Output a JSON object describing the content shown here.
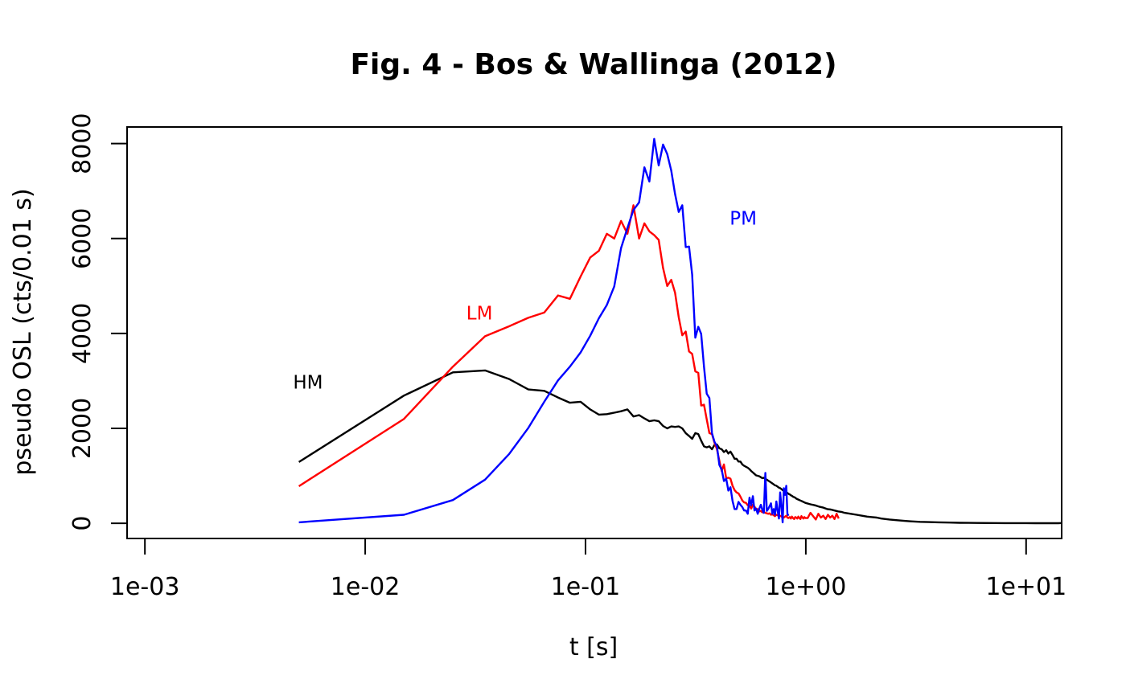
{
  "chart_data": {
    "type": "line",
    "title": "Fig. 4 - Bos & Wallinga (2012)",
    "xlabel": "t [s]",
    "ylabel": "pseudo OSL (cts/0.01 s)",
    "x_scale": "log",
    "xlim": [
      0.00083,
      14.5
    ],
    "ylim": [
      -320,
      8350
    ],
    "xticks": [
      0.001,
      0.01,
      0.1,
      1,
      10
    ],
    "xtick_labels": [
      "1e-03",
      "1e-02",
      "1e-01",
      "1e+00",
      "1e+01"
    ],
    "yticks": [
      0,
      2000,
      4000,
      6000,
      8000
    ],
    "ytick_labels": [
      "0",
      "2000",
      "4000",
      "6000",
      "8000"
    ],
    "grid": false,
    "legend": "none",
    "series": [
      {
        "color": "#000000",
        "x": [
          0.005,
          0.015,
          0.025,
          0.035,
          0.045,
          0.055,
          0.065,
          0.075,
          0.085,
          0.095,
          0.105,
          0.115,
          0.125,
          0.135,
          0.145,
          0.155,
          0.165,
          0.175,
          0.185,
          0.195,
          0.205,
          0.215,
          0.225,
          0.235,
          0.245,
          0.255,
          0.265,
          0.275,
          0.285,
          0.295,
          0.305,
          0.315,
          0.325,
          0.335,
          0.345,
          0.355,
          0.365,
          0.375,
          0.385,
          0.395,
          0.405,
          0.415,
          0.425,
          0.435,
          0.445,
          0.455,
          0.465,
          0.475,
          0.485,
          0.495,
          0.505,
          0.515,
          0.525,
          0.535,
          0.545,
          0.555,
          0.565,
          0.575,
          0.585,
          0.595,
          0.605,
          0.615,
          0.625,
          0.635,
          0.645,
          0.655,
          0.665,
          0.675,
          0.685,
          0.695,
          0.705,
          0.715,
          0.725,
          0.735,
          0.745,
          0.755,
          0.765,
          0.775,
          0.785,
          0.795,
          0.805,
          0.815,
          0.825,
          0.835,
          0.845,
          0.855,
          0.865,
          0.875,
          0.885,
          0.895,
          0.905,
          0.915,
          0.925,
          0.935,
          0.945,
          0.955,
          0.965,
          0.975,
          0.985,
          0.995,
          1.05,
          1.1,
          1.15,
          1.2,
          1.25,
          1.3,
          1.35,
          1.4,
          1.45,
          1.5,
          1.6,
          1.7,
          1.8,
          1.9,
          2.0,
          2.1,
          2.2,
          2.4,
          2.6,
          2.8,
          3.0,
          3.3,
          3.6,
          4.0,
          4.5,
          5.0,
          5.5,
          6.0,
          7.0,
          8.0,
          9.0,
          10.0,
          11.0,
          12.0,
          13.0,
          14.0,
          14.5
        ],
        "y": [
          1290,
          2690,
          3180,
          3220,
          3040,
          2820,
          2790,
          2650,
          2540,
          2560,
          2400,
          2290,
          2300,
          2330,
          2360,
          2400,
          2250,
          2280,
          2210,
          2150,
          2170,
          2150,
          2050,
          2000,
          2040,
          2030,
          2040,
          2000,
          1900,
          1840,
          1780,
          1900,
          1880,
          1740,
          1620,
          1600,
          1620,
          1560,
          1650,
          1660,
          1580,
          1560,
          1500,
          1540,
          1470,
          1510,
          1440,
          1360,
          1360,
          1300,
          1300,
          1240,
          1210,
          1190,
          1170,
          1140,
          1100,
          1070,
          1040,
          1010,
          1000,
          990,
          970,
          950,
          960,
          930,
          920,
          900,
          880,
          860,
          840,
          820,
          800,
          790,
          770,
          750,
          740,
          720,
          700,
          680,
          670,
          650,
          640,
          620,
          610,
          590,
          580,
          560,
          550,
          540,
          520,
          510,
          500,
          490,
          480,
          470,
          460,
          450,
          440,
          430,
          400,
          380,
          350,
          330,
          300,
          290,
          270,
          250,
          240,
          220,
          200,
          180,
          160,
          140,
          130,
          120,
          100,
          80,
          65,
          50,
          40,
          30,
          25,
          20,
          15,
          10,
          8,
          6,
          5,
          4,
          3,
          3,
          2,
          2,
          2,
          2,
          5
        ]
      },
      {
        "color": "#ff0000",
        "x": [
          0.005,
          0.015,
          0.025,
          0.035,
          0.045,
          0.055,
          0.065,
          0.075,
          0.085,
          0.095,
          0.105,
          0.115,
          0.125,
          0.135,
          0.145,
          0.155,
          0.165,
          0.175,
          0.185,
          0.195,
          0.205,
          0.215,
          0.225,
          0.235,
          0.245,
          0.255,
          0.265,
          0.275,
          0.285,
          0.295,
          0.305,
          0.315,
          0.325,
          0.335,
          0.345,
          0.355,
          0.365,
          0.375,
          0.385,
          0.395,
          0.405,
          0.415,
          0.425,
          0.435,
          0.445,
          0.455,
          0.465,
          0.475,
          0.485,
          0.495,
          0.505,
          0.515,
          0.525,
          0.535,
          0.545,
          0.555,
          0.565,
          0.575,
          0.585,
          0.595,
          0.605,
          0.615,
          0.625,
          0.635,
          0.645,
          0.655,
          0.665,
          0.675,
          0.685,
          0.695,
          0.705,
          0.715,
          0.725,
          0.735,
          0.745,
          0.755,
          0.765,
          0.775,
          0.785,
          0.795,
          0.805,
          0.815,
          0.825,
          0.835,
          0.845,
          0.855,
          0.865,
          0.875,
          0.885,
          0.895,
          0.905,
          0.915,
          0.925,
          0.935,
          0.945,
          0.955,
          0.965,
          0.975,
          0.985,
          0.995,
          1.02,
          1.05,
          1.08,
          1.11,
          1.14,
          1.17,
          1.2,
          1.23,
          1.26,
          1.29,
          1.32,
          1.35,
          1.38,
          1.41
        ],
        "y": [
          780,
          2200,
          3300,
          3940,
          4150,
          4330,
          4440,
          4800,
          4730,
          5200,
          5600,
          5740,
          6100,
          6000,
          6370,
          6100,
          6700,
          6000,
          6320,
          6150,
          6070,
          5970,
          5380,
          5000,
          5130,
          4860,
          4340,
          3960,
          4040,
          3620,
          3570,
          3200,
          3170,
          2480,
          2500,
          2190,
          1900,
          1880,
          1700,
          1560,
          1320,
          1100,
          1240,
          950,
          960,
          940,
          790,
          700,
          650,
          630,
          560,
          480,
          440,
          430,
          380,
          370,
          310,
          390,
          350,
          300,
          300,
          250,
          260,
          230,
          240,
          220,
          210,
          200,
          210,
          180,
          190,
          170,
          150,
          180,
          170,
          150,
          160,
          140,
          130,
          120,
          140,
          160,
          120,
          110,
          130,
          100,
          140,
          110,
          90,
          130,
          120,
          100,
          140,
          110,
          90,
          150,
          120,
          100,
          130,
          110,
          110,
          220,
          150,
          80,
          200,
          120,
          160,
          90,
          180,
          120,
          160,
          90,
          200,
          100
        ]
      },
      {
        "color": "#0000ff",
        "x": [
          0.005,
          0.015,
          0.025,
          0.035,
          0.045,
          0.055,
          0.065,
          0.075,
          0.085,
          0.095,
          0.105,
          0.115,
          0.125,
          0.135,
          0.145,
          0.155,
          0.165,
          0.175,
          0.185,
          0.195,
          0.205,
          0.215,
          0.225,
          0.235,
          0.245,
          0.255,
          0.265,
          0.275,
          0.285,
          0.295,
          0.305,
          0.315,
          0.325,
          0.335,
          0.345,
          0.355,
          0.365,
          0.375,
          0.385,
          0.395,
          0.405,
          0.415,
          0.425,
          0.435,
          0.445,
          0.455,
          0.465,
          0.475,
          0.485,
          0.495,
          0.505,
          0.515,
          0.525,
          0.535,
          0.545,
          0.555,
          0.565,
          0.575,
          0.585,
          0.595,
          0.605,
          0.615,
          0.625,
          0.635,
          0.645,
          0.655,
          0.665,
          0.675,
          0.685,
          0.695,
          0.705,
          0.715,
          0.725,
          0.735,
          0.745,
          0.755,
          0.765,
          0.775,
          0.785,
          0.795,
          0.805,
          0.815,
          0.825,
          0.835
        ],
        "y": [
          20,
          180,
          490,
          920,
          1460,
          2010,
          2560,
          3010,
          3300,
          3600,
          3950,
          4320,
          4600,
          4990,
          5800,
          6220,
          6600,
          6760,
          7500,
          7200,
          8100,
          7540,
          7980,
          7780,
          7430,
          6940,
          6560,
          6700,
          5820,
          5830,
          5240,
          3910,
          4140,
          3990,
          3300,
          2730,
          2640,
          1900,
          1720,
          1620,
          1230,
          1130,
          890,
          940,
          690,
          760,
          470,
          300,
          300,
          450,
          390,
          340,
          270,
          270,
          200,
          540,
          380,
          570,
          270,
          310,
          200,
          310,
          390,
          280,
          220,
          1060,
          260,
          300,
          360,
          420,
          200,
          300,
          180,
          460,
          260,
          100,
          650,
          350,
          20,
          740,
          600,
          790,
          200,
          160
        ]
      }
    ],
    "annotations": [
      {
        "text": "HM",
        "x": 0.0055,
        "y": 2970,
        "color": "#000000"
      },
      {
        "text": "LM",
        "x": 0.033,
        "y": 4430,
        "color": "#ff0000"
      },
      {
        "text": "PM",
        "x": 0.52,
        "y": 6430,
        "color": "#0000ff"
      }
    ]
  }
}
